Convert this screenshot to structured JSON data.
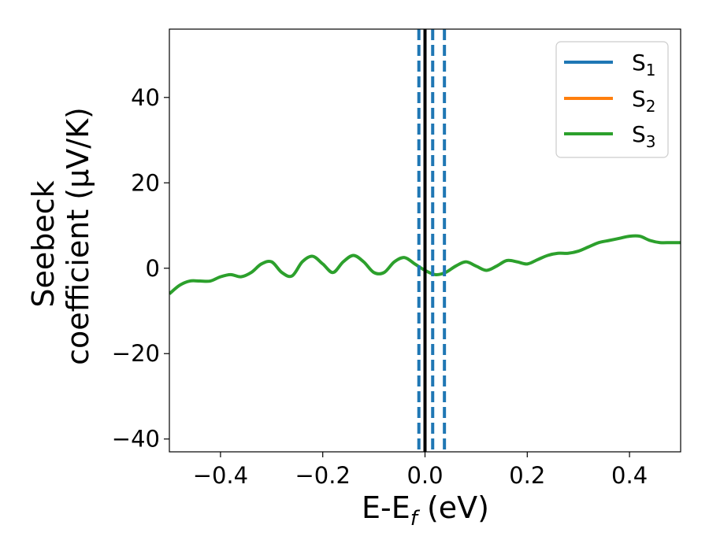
{
  "chart_data": {
    "type": "line",
    "title": "",
    "xlabel": "E-E",
    "xlabel_sub": "f",
    "xlabel_unit": " (eV)",
    "ylabel_line1": "Seebeck",
    "ylabel_line2": "coefficient  (μV/K)",
    "xlim": [
      -0.5,
      0.5
    ],
    "ylim": [
      -43,
      56
    ],
    "xticks": [
      -0.4,
      -0.2,
      0.0,
      0.2,
      0.4
    ],
    "xtick_labels": [
      "−0.4",
      "−0.2",
      "0.0",
      "0.2",
      "0.4"
    ],
    "yticks": [
      -40,
      -20,
      0,
      20,
      40
    ],
    "ytick_labels": [
      "−40",
      "−20",
      "0",
      "20",
      "40"
    ],
    "legend_position": "top-right",
    "series": [
      {
        "name": "S",
        "sub": "1",
        "color": "#1f77b4"
      },
      {
        "name": "S",
        "sub": "2",
        "color": "#ff7f0e"
      },
      {
        "name": "S",
        "sub": "3",
        "color": "#2ca02c"
      }
    ],
    "curve": {
      "color": "#2ca02c",
      "x": [
        -0.5,
        -0.48,
        -0.46,
        -0.44,
        -0.42,
        -0.4,
        -0.38,
        -0.36,
        -0.34,
        -0.32,
        -0.3,
        -0.28,
        -0.26,
        -0.24,
        -0.22,
        -0.2,
        -0.18,
        -0.16,
        -0.14,
        -0.12,
        -0.1,
        -0.08,
        -0.06,
        -0.04,
        -0.02,
        0.0,
        0.02,
        0.04,
        0.06,
        0.08,
        0.1,
        0.12,
        0.14,
        0.16,
        0.18,
        0.2,
        0.22,
        0.24,
        0.26,
        0.28,
        0.3,
        0.32,
        0.34,
        0.36,
        0.38,
        0.4,
        0.42,
        0.44,
        0.46,
        0.48,
        0.5
      ],
      "y": [
        -6.0,
        -4.0,
        -3.0,
        -3.0,
        -3.0,
        -2.0,
        -1.5,
        -2.0,
        -1.0,
        1.0,
        1.5,
        -1.0,
        -1.8,
        1.5,
        2.8,
        1.0,
        -1.0,
        1.5,
        3.0,
        1.5,
        -1.0,
        -1.0,
        1.5,
        2.5,
        1.0,
        -0.5,
        -1.5,
        -1.0,
        0.5,
        1.5,
        0.5,
        -0.5,
        0.5,
        1.8,
        1.5,
        1.0,
        2.0,
        3.0,
        3.5,
        3.5,
        4.0,
        5.0,
        6.0,
        6.5,
        7.0,
        7.5,
        7.5,
        6.5,
        6.0,
        6.0,
        6.0
      ]
    },
    "vertical_lines": [
      {
        "x": -0.012,
        "style": "dashed",
        "color": "#1f77b4"
      },
      {
        "x": 0.015,
        "style": "dashed",
        "color": "#1f77b4"
      },
      {
        "x": 0.038,
        "style": "dashed",
        "color": "#1f77b4"
      },
      {
        "x": 0.0,
        "style": "solid",
        "color": "#000000"
      }
    ]
  }
}
